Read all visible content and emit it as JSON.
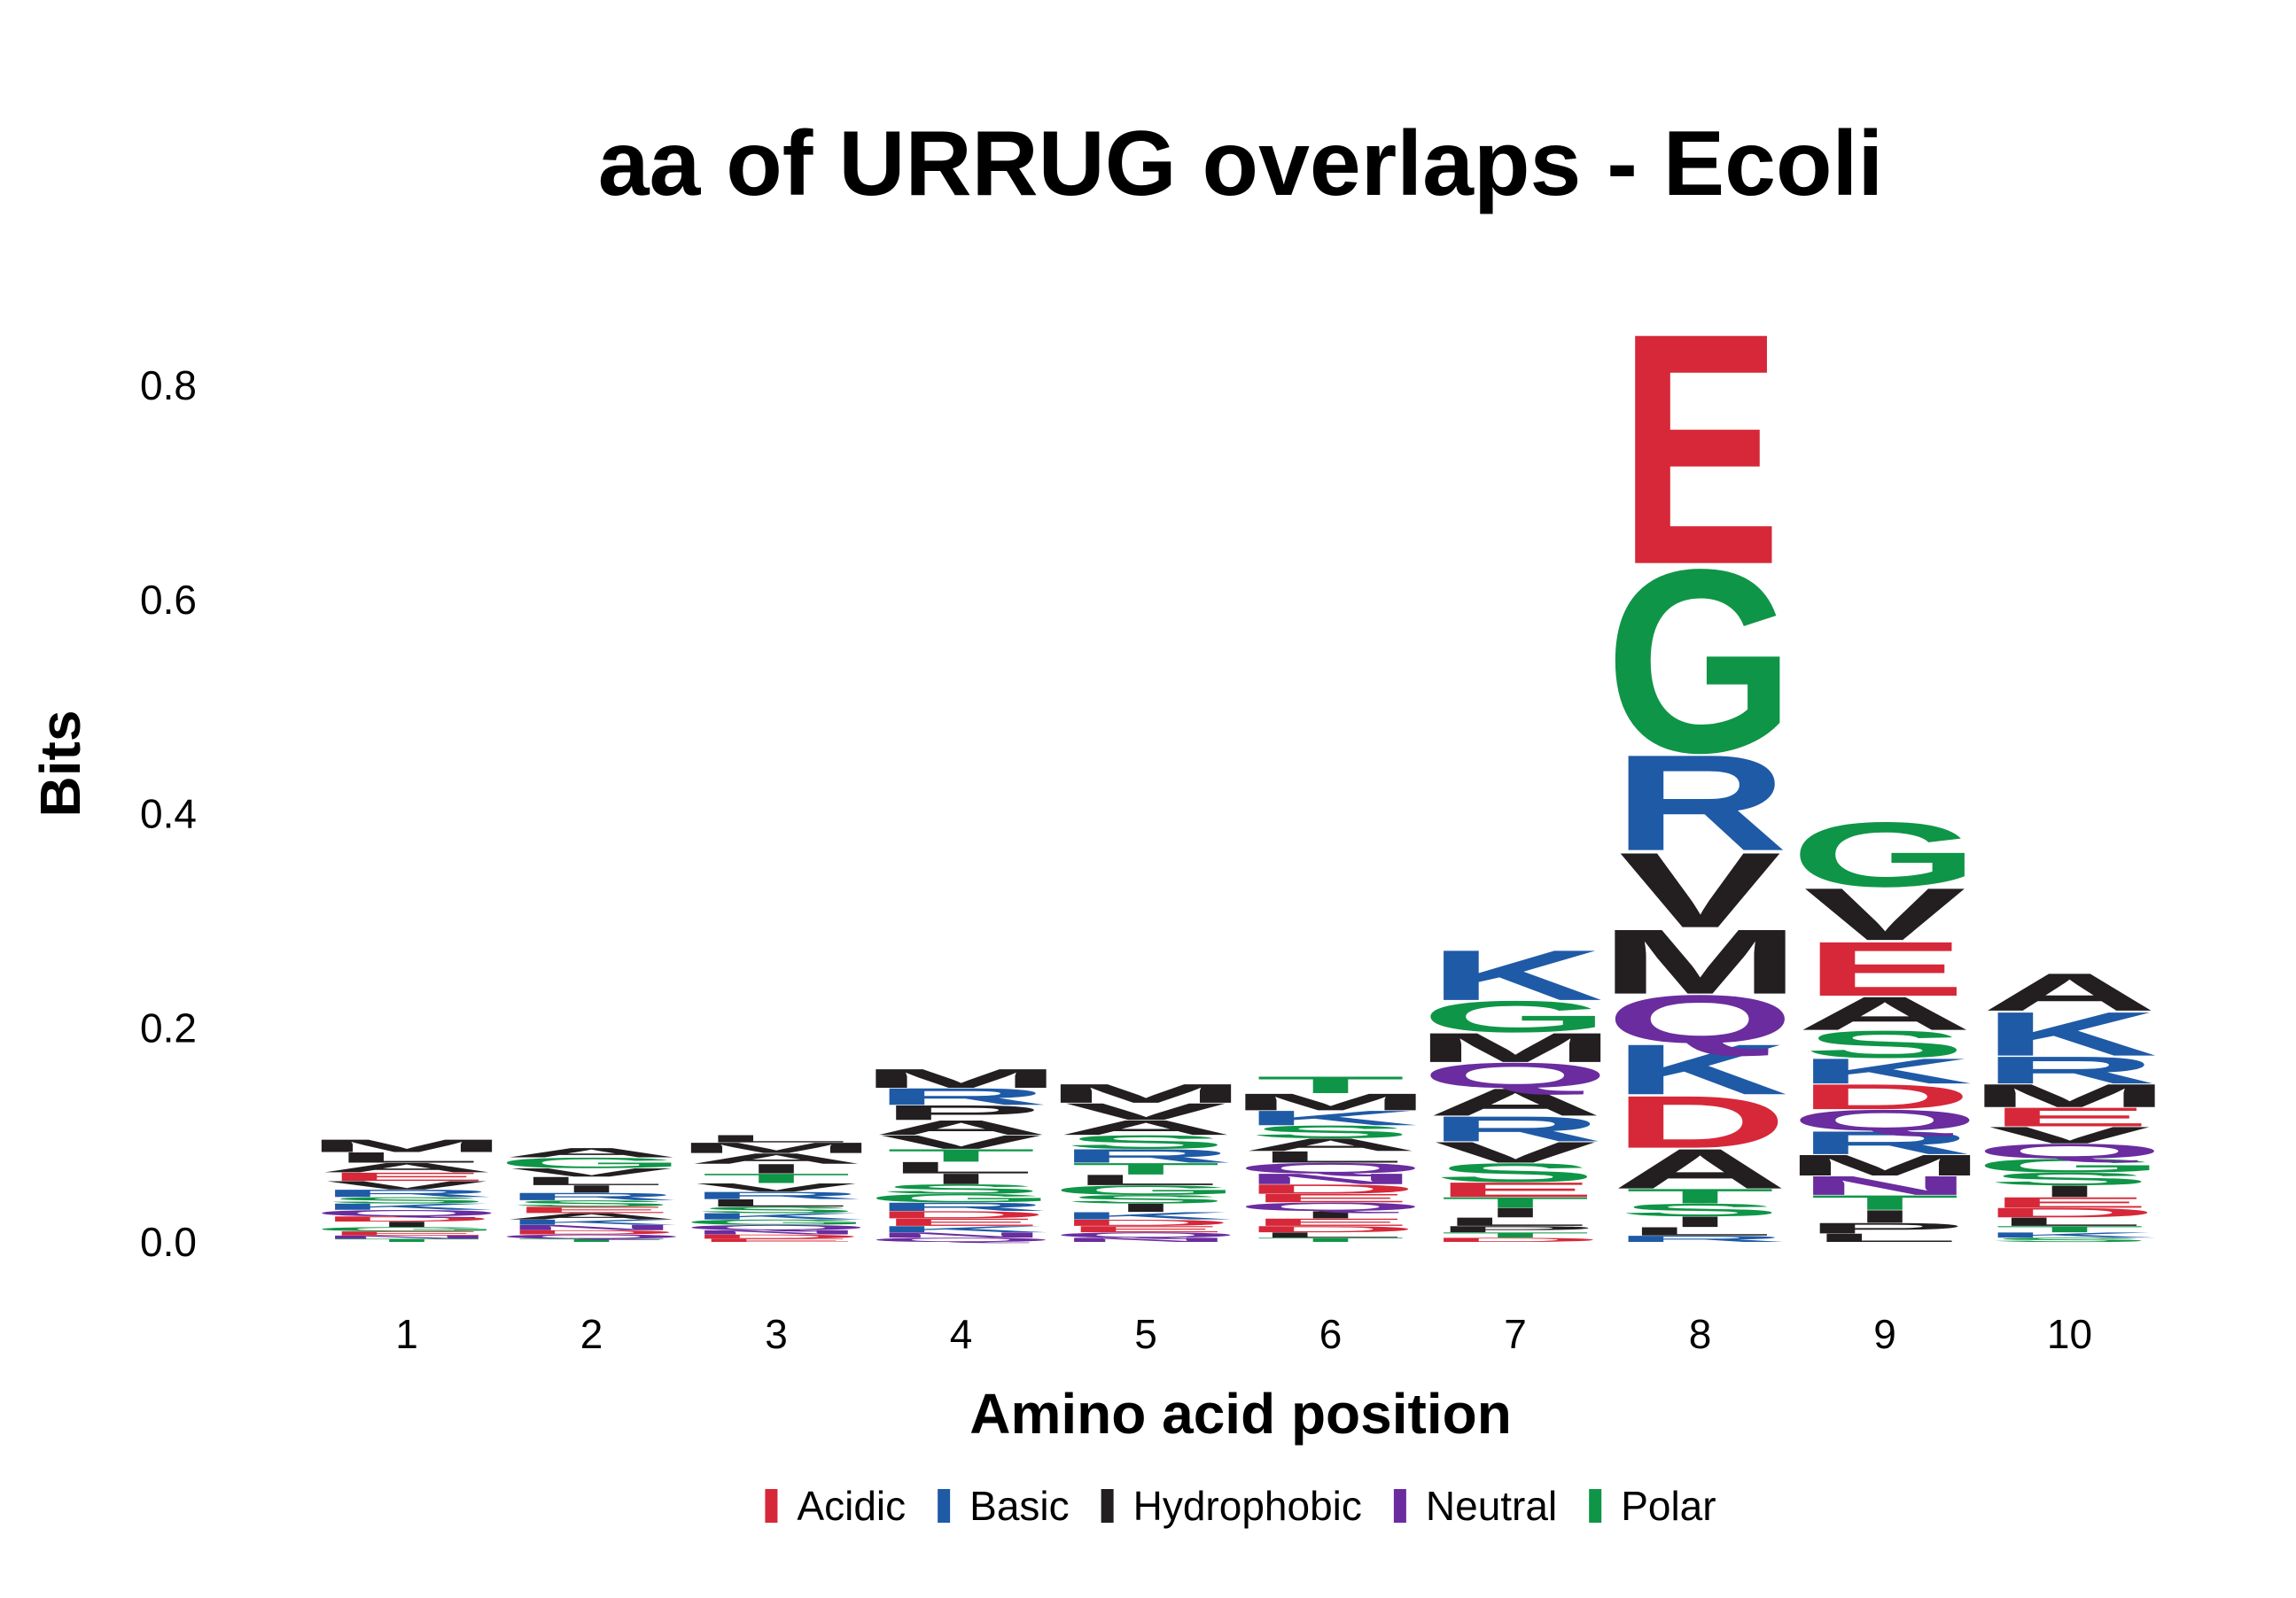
{
  "chart_data": {
    "type": "sequence-logo",
    "title": "aa of URRUG overlaps - Ecoli",
    "xlabel": "Amino acid position",
    "ylabel": "Bits",
    "ylim": [
      0,
      0.88
    ],
    "yticks": [
      0.0,
      0.2,
      0.4,
      0.6,
      0.8
    ],
    "ytick_labels": [
      "0.0",
      "0.2",
      "0.4",
      "0.6",
      "0.8"
    ],
    "positions": [
      "1",
      "2",
      "3",
      "4",
      "5",
      "6",
      "7",
      "8",
      "9",
      "10"
    ],
    "grid": false,
    "legend_position": "bottom",
    "legend": [
      {
        "name": "Acidic",
        "color": "#D62839"
      },
      {
        "name": "Basic",
        "color": "#1F5AA6"
      },
      {
        "name": "Hydrophobic",
        "color": "#231F20"
      },
      {
        "name": "Neutral",
        "color": "#6A2C9E"
      },
      {
        "name": "Polar",
        "color": "#0F9547"
      }
    ],
    "class_colors": {
      "Acidic": "#D62839",
      "Basic": "#1F5AA6",
      "Hydrophobic": "#231F20",
      "Neutral": "#6A2C9E",
      "Polar": "#0F9547"
    },
    "residue_class": {
      "A": "Hydrophobic",
      "V": "Hydrophobic",
      "L": "Hydrophobic",
      "I": "Hydrophobic",
      "M": "Hydrophobic",
      "F": "Hydrophobic",
      "W": "Hydrophobic",
      "P": "Hydrophobic",
      "E": "Acidic",
      "D": "Acidic",
      "K": "Basic",
      "R": "Basic",
      "H": "Basic",
      "Q": "Neutral",
      "N": "Neutral",
      "G": "Polar",
      "S": "Polar",
      "T": "Polar",
      "C": "Polar",
      "Y": "Polar"
    },
    "stacks": [
      {
        "position": "1",
        "letters": [
          {
            "aa": "T",
            "bits": 0.003
          },
          {
            "aa": "N",
            "bits": 0.003
          },
          {
            "aa": "E",
            "bits": 0.004
          },
          {
            "aa": "G",
            "bits": 0.004
          },
          {
            "aa": "I",
            "bits": 0.005
          },
          {
            "aa": "D",
            "bits": 0.005
          },
          {
            "aa": "Q",
            "bits": 0.006
          },
          {
            "aa": "K",
            "bits": 0.006
          },
          {
            "aa": "S",
            "bits": 0.006
          },
          {
            "aa": "R",
            "bits": 0.007
          },
          {
            "aa": "V",
            "bits": 0.008
          },
          {
            "aa": "E",
            "bits": 0.008
          },
          {
            "aa": "A",
            "bits": 0.009
          },
          {
            "aa": "L",
            "bits": 0.01
          },
          {
            "aa": "M",
            "bits": 0.012
          }
        ]
      },
      {
        "position": "2",
        "letters": [
          {
            "aa": "T",
            "bits": 0.003
          },
          {
            "aa": "Q",
            "bits": 0.004
          },
          {
            "aa": "D",
            "bits": 0.004
          },
          {
            "aa": "N",
            "bits": 0.005
          },
          {
            "aa": "K",
            "bits": 0.005
          },
          {
            "aa": "A",
            "bits": 0.006
          },
          {
            "aa": "E",
            "bits": 0.006
          },
          {
            "aa": "S",
            "bits": 0.006
          },
          {
            "aa": "R",
            "bits": 0.007
          },
          {
            "aa": "I",
            "bits": 0.007
          },
          {
            "aa": "L",
            "bits": 0.008
          },
          {
            "aa": "V",
            "bits": 0.008
          },
          {
            "aa": "G",
            "bits": 0.01
          },
          {
            "aa": "A",
            "bits": 0.009
          }
        ]
      },
      {
        "position": "3",
        "letters": [
          {
            "aa": "E",
            "bits": 0.003
          },
          {
            "aa": "D",
            "bits": 0.004
          },
          {
            "aa": "N",
            "bits": 0.004
          },
          {
            "aa": "Q",
            "bits": 0.005
          },
          {
            "aa": "G",
            "bits": 0.005
          },
          {
            "aa": "K",
            "bits": 0.006
          },
          {
            "aa": "S",
            "bits": 0.006
          },
          {
            "aa": "L",
            "bits": 0.007
          },
          {
            "aa": "R",
            "bits": 0.007
          },
          {
            "aa": "V",
            "bits": 0.008
          },
          {
            "aa": "T",
            "bits": 0.009
          },
          {
            "aa": "I",
            "bits": 0.009
          },
          {
            "aa": "A",
            "bits": 0.01
          },
          {
            "aa": "M",
            "bits": 0.01
          },
          {
            "aa": "L",
            "bits": 0.007
          }
        ]
      },
      {
        "position": "4",
        "letters": [
          {
            "aa": "Q",
            "bits": 0.004
          },
          {
            "aa": "N",
            "bits": 0.005
          },
          {
            "aa": "K",
            "bits": 0.006
          },
          {
            "aa": "E",
            "bits": 0.007
          },
          {
            "aa": "D",
            "bits": 0.007
          },
          {
            "aa": "R",
            "bits": 0.008
          },
          {
            "aa": "G",
            "bits": 0.008
          },
          {
            "aa": "S",
            "bits": 0.009
          },
          {
            "aa": "I",
            "bits": 0.01
          },
          {
            "aa": "L",
            "bits": 0.011
          },
          {
            "aa": "T",
            "bits": 0.012
          },
          {
            "aa": "V",
            "bits": 0.013
          },
          {
            "aa": "A",
            "bits": 0.014
          },
          {
            "aa": "P",
            "bits": 0.014
          },
          {
            "aa": "R",
            "bits": 0.016
          },
          {
            "aa": "M",
            "bits": 0.018
          }
        ]
      },
      {
        "position": "5",
        "letters": [
          {
            "aa": "N",
            "bits": 0.004
          },
          {
            "aa": "Q",
            "bits": 0.005
          },
          {
            "aa": "E",
            "bits": 0.006
          },
          {
            "aa": "D",
            "bits": 0.006
          },
          {
            "aa": "K",
            "bits": 0.007
          },
          {
            "aa": "I",
            "bits": 0.008
          },
          {
            "aa": "S",
            "bits": 0.008
          },
          {
            "aa": "G",
            "bits": 0.009
          },
          {
            "aa": "L",
            "bits": 0.01
          },
          {
            "aa": "T",
            "bits": 0.011
          },
          {
            "aa": "R",
            "bits": 0.013
          },
          {
            "aa": "S",
            "bits": 0.013
          },
          {
            "aa": "A",
            "bits": 0.014
          },
          {
            "aa": "V",
            "bits": 0.016
          },
          {
            "aa": "M",
            "bits": 0.018
          }
        ]
      },
      {
        "position": "6",
        "letters": [
          {
            "aa": "T",
            "bits": 0.004
          },
          {
            "aa": "L",
            "bits": 0.005
          },
          {
            "aa": "D",
            "bits": 0.006
          },
          {
            "aa": "E",
            "bits": 0.007
          },
          {
            "aa": "I",
            "bits": 0.007
          },
          {
            "aa": "Q",
            "bits": 0.008
          },
          {
            "aa": "E",
            "bits": 0.008
          },
          {
            "aa": "D",
            "bits": 0.009
          },
          {
            "aa": "N",
            "bits": 0.01
          },
          {
            "aa": "Q",
            "bits": 0.01
          },
          {
            "aa": "L",
            "bits": 0.011
          },
          {
            "aa": "A",
            "bits": 0.012
          },
          {
            "aa": "S",
            "bits": 0.012
          },
          {
            "aa": "K",
            "bits": 0.014
          },
          {
            "aa": "M",
            "bits": 0.016
          },
          {
            "aa": "T",
            "bits": 0.016
          }
        ]
      },
      {
        "position": "7",
        "letters": [
          {
            "aa": "D",
            "bits": 0.004
          },
          {
            "aa": "T",
            "bits": 0.005
          },
          {
            "aa": "P",
            "bits": 0.006
          },
          {
            "aa": "L",
            "bits": 0.008
          },
          {
            "aa": "I",
            "bits": 0.009
          },
          {
            "aa": "T",
            "bits": 0.01
          },
          {
            "aa": "E",
            "bits": 0.014
          },
          {
            "aa": "S",
            "bits": 0.018
          },
          {
            "aa": "V",
            "bits": 0.02
          },
          {
            "aa": "R",
            "bits": 0.024
          },
          {
            "aa": "A",
            "bits": 0.026
          },
          {
            "aa": "Q",
            "bits": 0.024
          },
          {
            "aa": "M",
            "bits": 0.028
          },
          {
            "aa": "G",
            "bits": 0.03
          },
          {
            "aa": "K",
            "bits": 0.048
          }
        ]
      },
      {
        "position": "8",
        "letters": [
          {
            "aa": "R",
            "bits": 0.006
          },
          {
            "aa": "L",
            "bits": 0.008
          },
          {
            "aa": "I",
            "bits": 0.01
          },
          {
            "aa": "S",
            "bits": 0.012
          },
          {
            "aa": "T",
            "bits": 0.014
          },
          {
            "aa": "A",
            "bits": 0.038
          },
          {
            "aa": "D",
            "bits": 0.05
          },
          {
            "aa": "K",
            "bits": 0.048
          },
          {
            "aa": "Q",
            "bits": 0.046
          },
          {
            "aa": "M",
            "bits": 0.062
          },
          {
            "aa": "V",
            "bits": 0.072
          },
          {
            "aa": "R",
            "bits": 0.092
          },
          {
            "aa": "G",
            "bits": 0.176
          },
          {
            "aa": "E",
            "bits": 0.222
          }
        ]
      },
      {
        "position": "9",
        "letters": [
          {
            "aa": "L",
            "bits": 0.008
          },
          {
            "aa": "P",
            "bits": 0.01
          },
          {
            "aa": "I",
            "bits": 0.012
          },
          {
            "aa": "T",
            "bits": 0.014
          },
          {
            "aa": "N",
            "bits": 0.018
          },
          {
            "aa": "M",
            "bits": 0.02
          },
          {
            "aa": "R",
            "bits": 0.022
          },
          {
            "aa": "Q",
            "bits": 0.02
          },
          {
            "aa": "D",
            "bits": 0.024
          },
          {
            "aa": "K",
            "bits": 0.024
          },
          {
            "aa": "S",
            "bits": 0.026
          },
          {
            "aa": "A",
            "bits": 0.032
          },
          {
            "aa": "E",
            "bits": 0.052
          },
          {
            "aa": "V",
            "bits": 0.05
          },
          {
            "aa": "G",
            "bits": 0.062
          }
        ]
      },
      {
        "position": "10",
        "letters": [
          {
            "aa": "S",
            "bits": 0.004
          },
          {
            "aa": "K",
            "bits": 0.005
          },
          {
            "aa": "T",
            "bits": 0.006
          },
          {
            "aa": "L",
            "bits": 0.008
          },
          {
            "aa": "D",
            "bits": 0.009
          },
          {
            "aa": "E",
            "bits": 0.01
          },
          {
            "aa": "I",
            "bits": 0.011
          },
          {
            "aa": "S",
            "bits": 0.012
          },
          {
            "aa": "G",
            "bits": 0.013
          },
          {
            "aa": "Q",
            "bits": 0.014
          },
          {
            "aa": "V",
            "bits": 0.016
          },
          {
            "aa": "E",
            "bits": 0.018
          },
          {
            "aa": "M",
            "bits": 0.022
          },
          {
            "aa": "R",
            "bits": 0.026
          },
          {
            "aa": "K",
            "bits": 0.042
          },
          {
            "aa": "A",
            "bits": 0.036
          }
        ]
      }
    ]
  }
}
